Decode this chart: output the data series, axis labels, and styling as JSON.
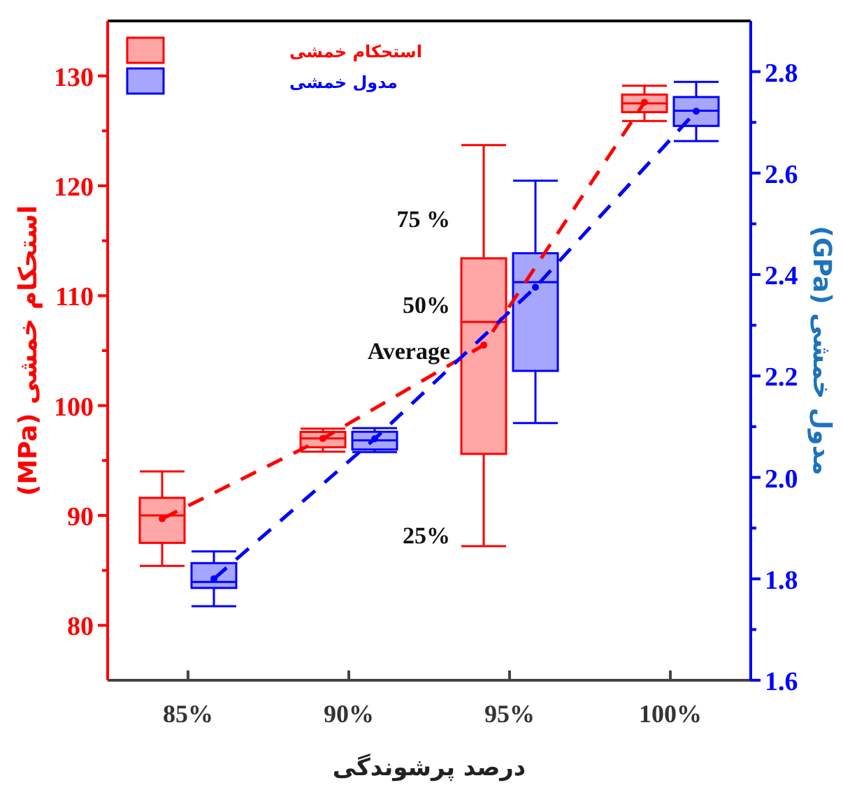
{
  "chart_data": {
    "type": "box",
    "xlabel": "درصد پرشوندگی",
    "ylabel": "استحکام خمشی (MPa)",
    "y2label": "مدول خمشی (GPa)",
    "categories": [
      "85%",
      "90%",
      "95%",
      "100%"
    ],
    "series": [
      {
        "name": "استحکام خمشی",
        "color": "#ff0000",
        "boxes": [
          {
            "low": 85.4,
            "q1": 87.5,
            "median": 90.0,
            "q3": 91.6,
            "high": 94.0,
            "mean": 89.7
          },
          {
            "low": 95.8,
            "q1": 96.2,
            "median": 97.0,
            "q3": 97.6,
            "high": 97.9,
            "mean": 97.0
          },
          {
            "low": 87.2,
            "q1": 95.6,
            "median": 107.6,
            "q3": 113.4,
            "high": 123.7,
            "mean": 105.5
          },
          {
            "low": 125.9,
            "q1": 126.7,
            "median": 127.5,
            "q3": 128.3,
            "high": 129.1,
            "mean": 127.6
          }
        ]
      },
      {
        "name": "مدول خمشی",
        "axis": "y2",
        "color": "#0000ff",
        "boxes": [
          {
            "low": 1.746,
            "q1": 1.782,
            "median": 1.794,
            "q3": 1.831,
            "high": 1.854,
            "mean": 1.8
          },
          {
            "low": 2.05,
            "q1": 2.055,
            "median": 2.073,
            "q3": 2.09,
            "high": 2.097,
            "mean": 2.076
          },
          {
            "low": 2.107,
            "q1": 2.21,
            "median": 2.385,
            "q3": 2.442,
            "high": 2.585,
            "mean": 2.375
          },
          {
            "low": 2.663,
            "q1": 2.693,
            "median": 2.723,
            "q3": 2.75,
            "high": 2.78,
            "mean": 2.722
          }
        ]
      },
      {
        "type": "line",
        "color": "#ff0000",
        "line_style": "dashed",
        "values": [
          89.7,
          97.0,
          105.5,
          127.6
        ]
      },
      {
        "type": "line",
        "axis": "y2",
        "color": "#0000ff",
        "line_style": "dashed",
        "values": [
          1.8,
          2.076,
          2.375,
          2.722
        ]
      }
    ],
    "ylim": [
      75,
      135
    ],
    "yticks": [
      80,
      {
        "value": 85,
        "label": null
      },
      90,
      {
        "value": 95,
        "label": null
      },
      100,
      {
        "value": 105,
        "label": null
      },
      110,
      {
        "value": 115,
        "label": null
      },
      120,
      {
        "value": 125,
        "label": null
      },
      130
    ],
    "y2lim": [
      1.6,
      2.9
    ],
    "y2ticks": [
      {
        "value": 1.6,
        "label": "1.6"
      },
      {
        "value": 1.7,
        "label": null
      },
      {
        "value": 1.8,
        "label": "1.8"
      },
      {
        "value": 1.9,
        "label": null
      },
      {
        "value": 2.0,
        "label": "2.0"
      },
      {
        "value": 2.1,
        "label": null
      },
      {
        "value": 2.2,
        "label": "2.2"
      },
      {
        "value": 2.3,
        "label": null
      },
      {
        "value": 2.4,
        "label": "2.4"
      },
      {
        "value": 2.5,
        "label": null
      },
      {
        "value": 2.6,
        "label": "2.6"
      },
      {
        "value": 2.7,
        "label": null
      },
      {
        "value": 2.8,
        "label": "2.8"
      }
    ],
    "annotations": [
      "75 %",
      "50%",
      "Average",
      "25%"
    ],
    "legend": "top left",
    "grid": false
  }
}
